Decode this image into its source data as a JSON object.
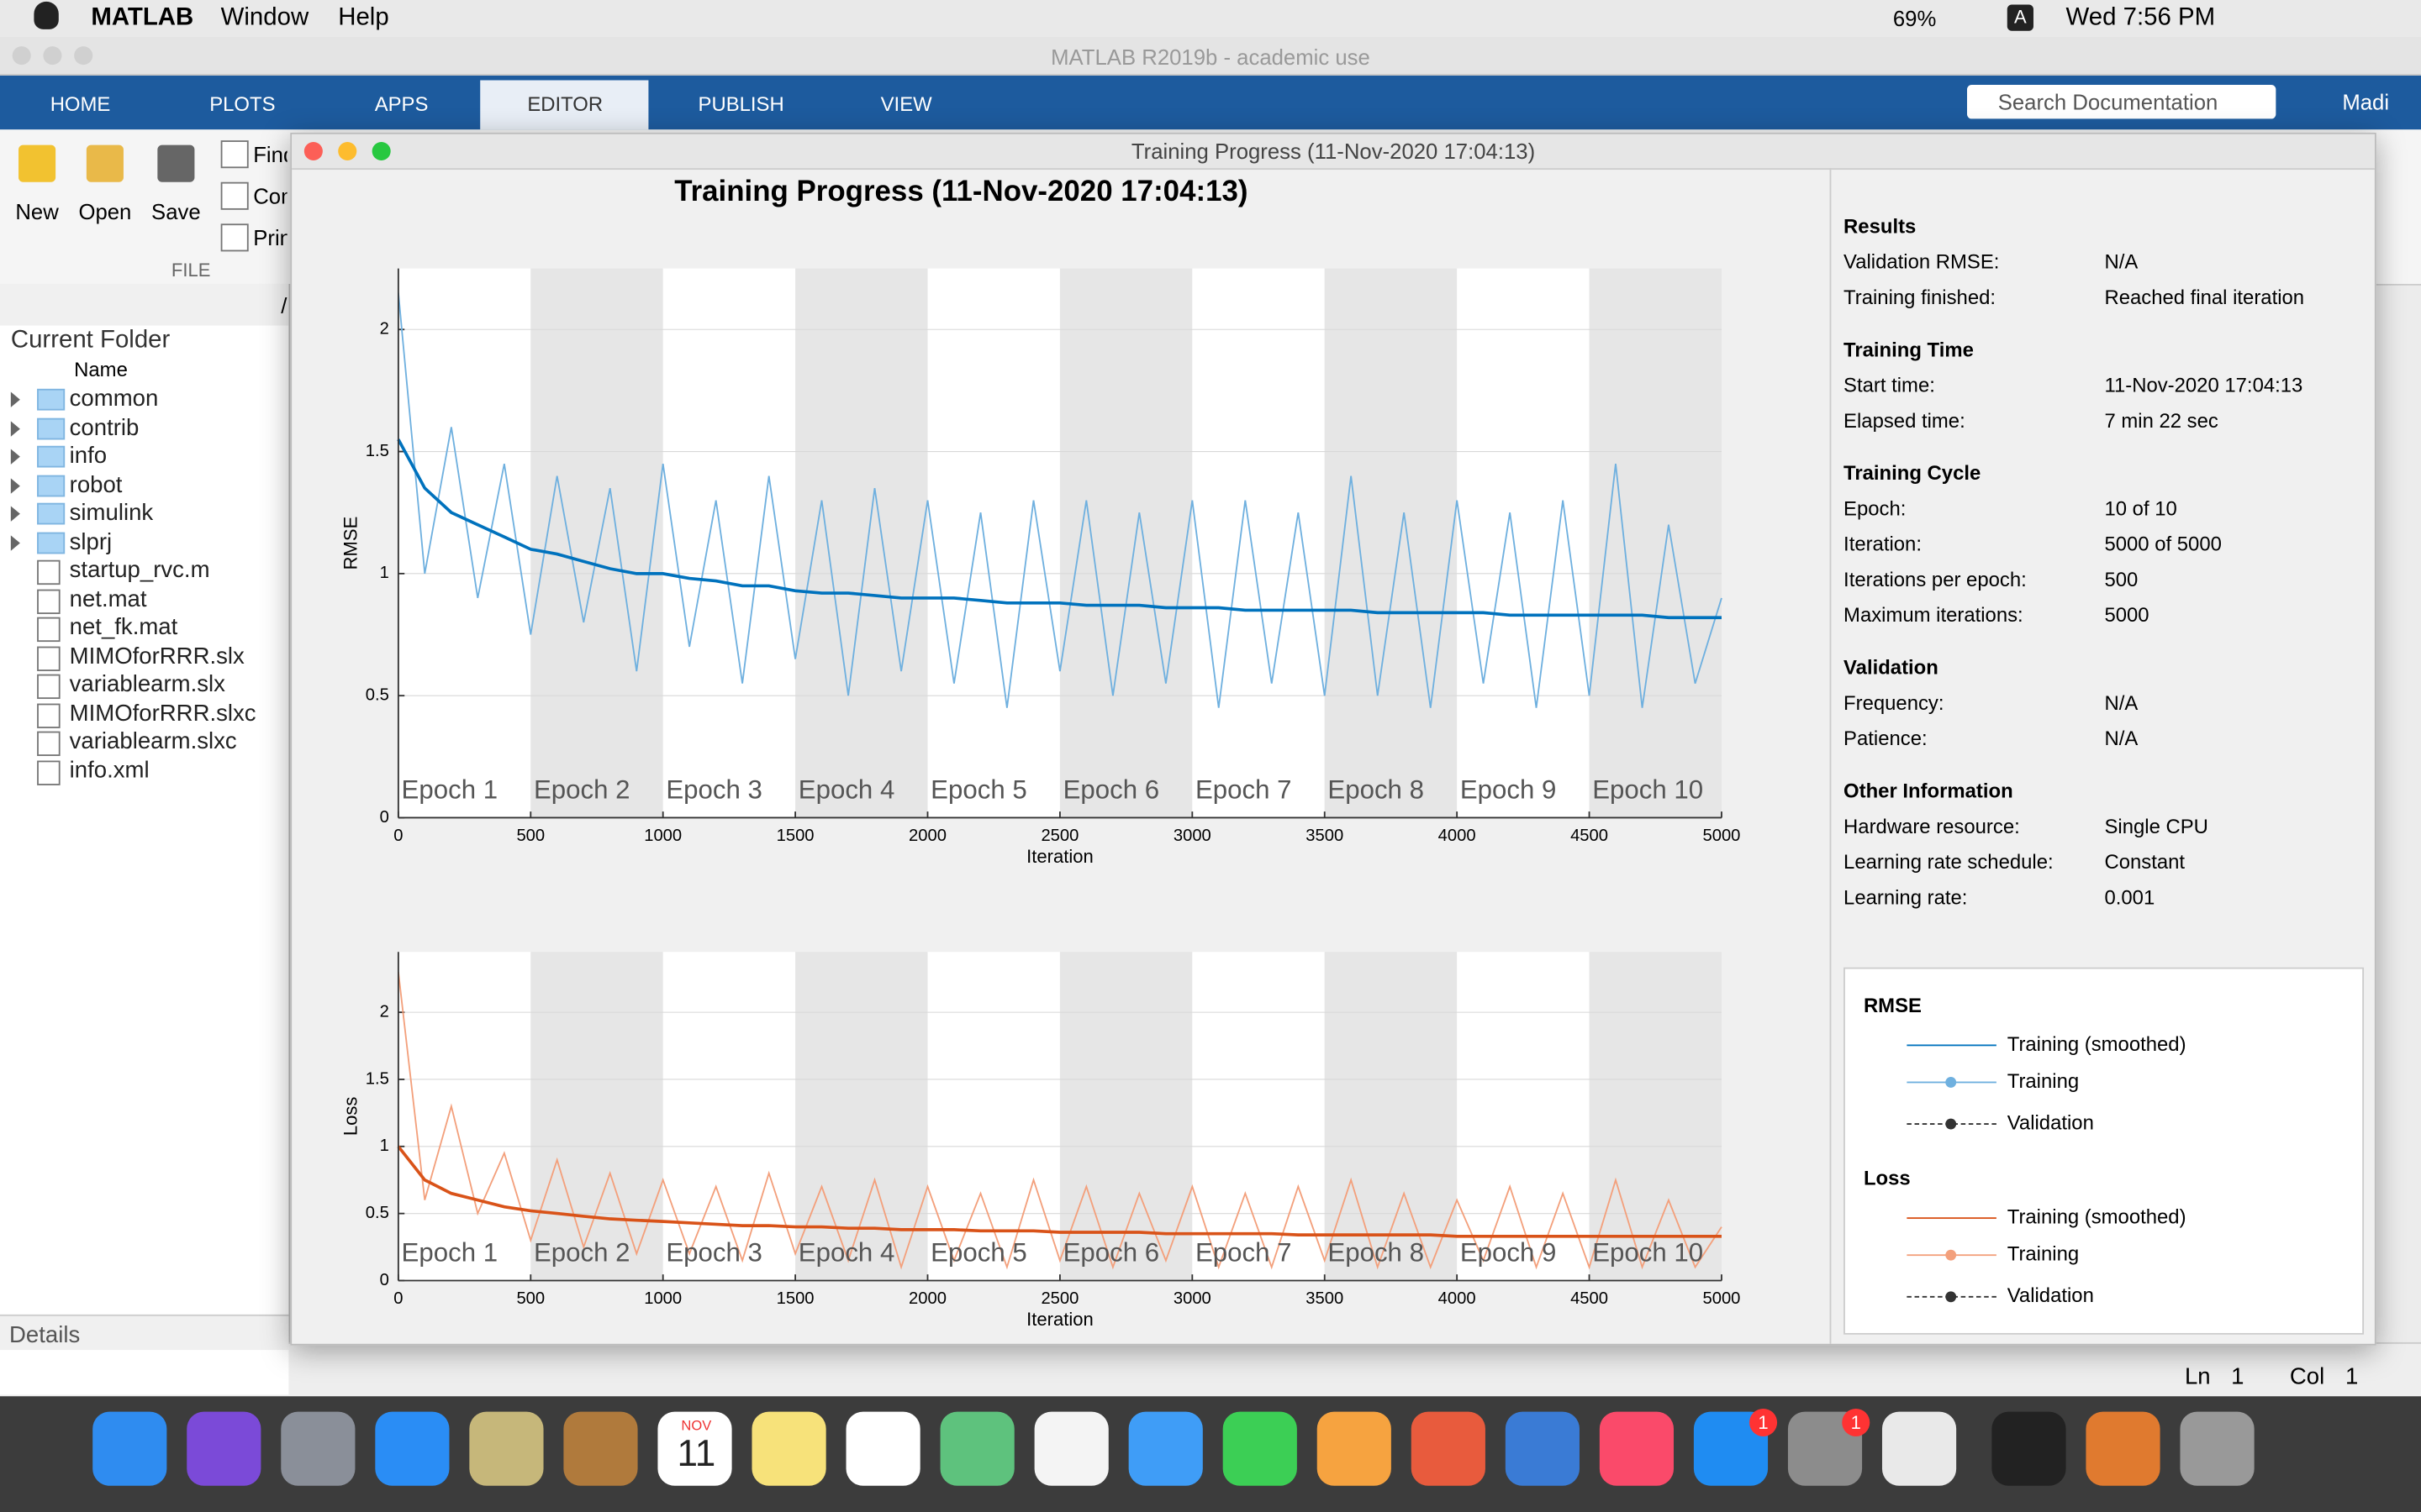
{
  "menubar": {
    "app": "MATLAB",
    "menus": [
      "Window",
      "Help"
    ],
    "battery": "69%",
    "input": "A",
    "clock": "Wed 7:56 PM"
  },
  "matlab": {
    "title": "MATLAB R2019b - academic use",
    "tabs": [
      "HOME",
      "PLOTS",
      "APPS",
      "EDITOR",
      "PUBLISH",
      "VIEW"
    ],
    "search": "Search Documentation",
    "user": "Madi",
    "file_buttons": [
      "New",
      "Open",
      "Save"
    ],
    "file_items": [
      "Find",
      "Com",
      "Prin"
    ],
    "file_group": "FILE"
  },
  "current_folder": {
    "title": "Current Folder",
    "column": "Name",
    "path": "/",
    "items": [
      "common",
      "contrib",
      "info",
      "robot",
      "simulink",
      "slprj",
      "startup_rvc.m",
      "net.mat",
      "net_fk.mat",
      "MIMOforRRR.slx",
      "variablearm.slx",
      "MIMOforRRR.slxc",
      "variablearm.slxc",
      "info.xml"
    ],
    "details": "Details"
  },
  "status": {
    "ln": "Ln",
    "ln_value": "1",
    "col": "Col",
    "col_value": "1"
  },
  "training_window": {
    "title": "Training Progress (11-Nov-2020 17:04:13)",
    "sections": [
      {
        "heading": "Results",
        "rows": [
          [
            "Validation RMSE:",
            "N/A"
          ],
          [
            "Training finished:",
            "Reached final iteration"
          ]
        ]
      },
      {
        "heading": "Training Time",
        "rows": [
          [
            "Start time:",
            "11-Nov-2020 17:04:13"
          ],
          [
            "Elapsed time:",
            "7 min 22 sec"
          ]
        ]
      },
      {
        "heading": "Training Cycle",
        "rows": [
          [
            "Epoch:",
            "10 of 10"
          ],
          [
            "Iteration:",
            "5000 of 5000"
          ],
          [
            "Iterations per epoch:",
            "500"
          ],
          [
            "Maximum iterations:",
            "5000"
          ]
        ]
      },
      {
        "heading": "Validation",
        "rows": [
          [
            "Frequency:",
            "N/A"
          ],
          [
            "Patience:",
            "N/A"
          ]
        ]
      },
      {
        "heading": "Other Information",
        "rows": [
          [
            "Hardware resource:",
            "Single CPU"
          ],
          [
            "Learning rate schedule:",
            "Constant"
          ],
          [
            "Learning rate:",
            "0.001"
          ]
        ]
      }
    ],
    "legend": [
      {
        "heading": "RMSE",
        "validation": "Validation"
      },
      {
        "heading": "Loss",
        "validation": "Validation"
      }
    ]
  },
  "chart_data": [
    {
      "type": "line",
      "title": "Training Progress (11-Nov-2020 17:04:13)",
      "x_label": "Iteration",
      "y_label": "RMSE",
      "epoch_labels": [
        "Epoch 1",
        "Epoch 2",
        "Epoch 3",
        "Epoch 4",
        "Epoch 5",
        "Epoch 6",
        "Epoch 7",
        "Epoch 8",
        "Epoch 9",
        "Epoch 10"
      ],
      "x": [
        0,
        100,
        200,
        300,
        400,
        500,
        600,
        700,
        800,
        900,
        1000,
        1100,
        1200,
        1300,
        1400,
        1500,
        1600,
        1700,
        1800,
        1900,
        2000,
        2100,
        2200,
        2300,
        2400,
        2500,
        2600,
        2700,
        2800,
        2900,
        3000,
        3100,
        3200,
        3300,
        3400,
        3500,
        3600,
        3700,
        3800,
        3900,
        4000,
        4100,
        4200,
        4300,
        4400,
        4500,
        4600,
        4700,
        4800,
        4900,
        5000
      ],
      "series": [
        {
          "name": "Training",
          "color": "#6fb0df",
          "values": [
            2.15,
            1.0,
            1.6,
            0.9,
            1.45,
            0.75,
            1.4,
            0.8,
            1.35,
            0.6,
            1.45,
            0.7,
            1.3,
            0.55,
            1.4,
            0.65,
            1.3,
            0.5,
            1.35,
            0.6,
            1.3,
            0.55,
            1.25,
            0.45,
            1.3,
            0.6,
            1.3,
            0.5,
            1.25,
            0.55,
            1.3,
            0.45,
            1.3,
            0.55,
            1.25,
            0.5,
            1.4,
            0.5,
            1.25,
            0.45,
            1.3,
            0.55,
            1.25,
            0.45,
            1.3,
            0.5,
            1.45,
            0.45,
            1.2,
            0.55,
            0.9
          ]
        },
        {
          "name": "Training (smoothed)",
          "color": "#0072bd",
          "values": [
            1.55,
            1.35,
            1.25,
            1.2,
            1.15,
            1.1,
            1.08,
            1.05,
            1.02,
            1.0,
            1.0,
            0.98,
            0.97,
            0.95,
            0.95,
            0.93,
            0.92,
            0.92,
            0.91,
            0.9,
            0.9,
            0.9,
            0.89,
            0.88,
            0.88,
            0.88,
            0.87,
            0.87,
            0.87,
            0.86,
            0.86,
            0.86,
            0.85,
            0.85,
            0.85,
            0.85,
            0.85,
            0.84,
            0.84,
            0.84,
            0.84,
            0.84,
            0.83,
            0.83,
            0.83,
            0.83,
            0.83,
            0.83,
            0.82,
            0.82,
            0.82
          ]
        }
      ],
      "xlim": [
        0,
        5000
      ],
      "xticks": [
        0,
        500,
        1000,
        1500,
        2000,
        2500,
        3000,
        3500,
        4000,
        4500,
        5000
      ],
      "ylim": [
        0,
        2.25
      ],
      "yticks": [
        0,
        0.5,
        1,
        1.5,
        2
      ],
      "grid": true
    },
    {
      "type": "line",
      "x_label": "Iteration",
      "y_label": "Loss",
      "epoch_labels": [
        "Epoch 1",
        "Epoch 2",
        "Epoch 3",
        "Epoch 4",
        "Epoch 5",
        "Epoch 6",
        "Epoch 7",
        "Epoch 8",
        "Epoch 9",
        "Epoch 10"
      ],
      "x": [
        0,
        100,
        200,
        300,
        400,
        500,
        600,
        700,
        800,
        900,
        1000,
        1100,
        1200,
        1300,
        1400,
        1500,
        1600,
        1700,
        1800,
        1900,
        2000,
        2100,
        2200,
        2300,
        2400,
        2500,
        2600,
        2700,
        2800,
        2900,
        3000,
        3100,
        3200,
        3300,
        3400,
        3500,
        3600,
        3700,
        3800,
        3900,
        4000,
        4100,
        4200,
        4300,
        4400,
        4500,
        4600,
        4700,
        4800,
        4900,
        5000
      ],
      "series": [
        {
          "name": "Training",
          "color": "#f3a07c",
          "values": [
            2.3,
            0.6,
            1.3,
            0.5,
            0.95,
            0.3,
            0.9,
            0.25,
            0.8,
            0.2,
            0.75,
            0.2,
            0.7,
            0.15,
            0.8,
            0.2,
            0.7,
            0.15,
            0.75,
            0.1,
            0.7,
            0.15,
            0.65,
            0.1,
            0.75,
            0.15,
            0.7,
            0.1,
            0.65,
            0.15,
            0.7,
            0.1,
            0.65,
            0.1,
            0.7,
            0.15,
            0.75,
            0.1,
            0.65,
            0.1,
            0.6,
            0.15,
            0.7,
            0.1,
            0.65,
            0.1,
            0.75,
            0.1,
            0.6,
            0.1,
            0.4
          ]
        },
        {
          "name": "Training (smoothed)",
          "color": "#d95319",
          "values": [
            1.0,
            0.75,
            0.65,
            0.6,
            0.55,
            0.52,
            0.5,
            0.48,
            0.46,
            0.45,
            0.44,
            0.43,
            0.42,
            0.41,
            0.41,
            0.4,
            0.4,
            0.39,
            0.39,
            0.38,
            0.38,
            0.38,
            0.37,
            0.37,
            0.37,
            0.36,
            0.36,
            0.36,
            0.36,
            0.35,
            0.35,
            0.35,
            0.35,
            0.35,
            0.34,
            0.34,
            0.34,
            0.34,
            0.34,
            0.34,
            0.33,
            0.33,
            0.33,
            0.33,
            0.33,
            0.33,
            0.33,
            0.33,
            0.33,
            0.33,
            0.33
          ]
        }
      ],
      "xlim": [
        0,
        5000
      ],
      "xticks": [
        0,
        500,
        1000,
        1500,
        2000,
        2500,
        3000,
        3500,
        4000,
        4500,
        5000
      ],
      "ylim": [
        0,
        2.45
      ],
      "yticks": [
        0,
        0.5,
        1,
        1.5,
        2
      ],
      "grid": true
    }
  ],
  "dock": {
    "calendar_month": "NOV",
    "calendar_day": "11",
    "badges": [
      "1",
      "1"
    ]
  }
}
